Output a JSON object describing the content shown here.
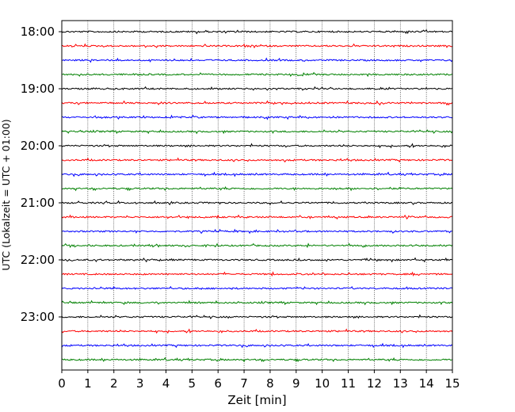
{
  "chart_data": {
    "type": "line",
    "title": "",
    "xlabel": "Zeit  [min]",
    "ylabel": "UTC (Lokalzeit = UTC + 01:00)",
    "xlim": [
      0,
      15
    ],
    "x_ticks": [
      "0",
      "1",
      "2",
      "3",
      "4",
      "5",
      "6",
      "7",
      "8",
      "9",
      "10",
      "11",
      "12",
      "13",
      "14",
      "15"
    ],
    "y_tick_labels": [
      "18:00",
      "19:00",
      "20:00",
      "21:00",
      "22:00",
      "23:00"
    ],
    "grid": "vertical dotted",
    "trace_interval_minutes": 15,
    "trace_start": "18:00",
    "trace_count": 24,
    "trace_colors": [
      "#000000",
      "#ff0000",
      "#0000ff",
      "#008000"
    ]
  }
}
